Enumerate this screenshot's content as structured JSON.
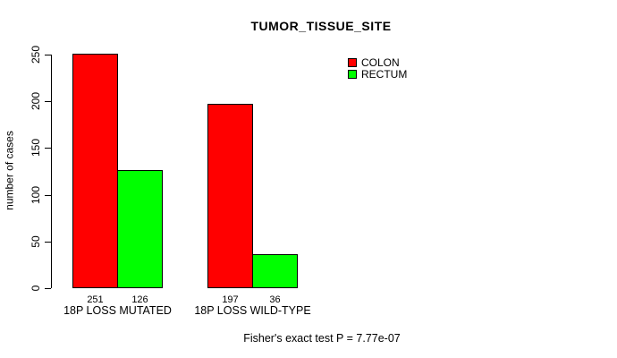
{
  "title": "TUMOR_TISSUE_SITE",
  "footnote": "Fisher's exact test P = 7.77e-07",
  "chart_data": {
    "type": "bar",
    "title": "TUMOR_TISSUE_SITE",
    "categories": [
      "18P LOSS MUTATED",
      "18P LOSS WILD-TYPE"
    ],
    "series": [
      {
        "name": "COLON",
        "color": "#FF0000",
        "values": [
          251,
          197
        ]
      },
      {
        "name": "RECTUM",
        "color": "#00FF00",
        "values": [
          126,
          36
        ]
      }
    ],
    "bar_value_labels": [
      [
        "251",
        "197"
      ],
      [
        "126",
        "36"
      ]
    ],
    "xlabel": "",
    "ylabel": "number of cases",
    "ylim": [
      0,
      250
    ],
    "yticks": [
      "0",
      "50",
      "100",
      "150",
      "200",
      "250"
    ],
    "grid": false,
    "legend_position": "top-right",
    "annotation": "Fisher's exact test P = 7.77e-07",
    "bar_border_color": "#000000",
    "background_color": "#FFFFFF"
  }
}
